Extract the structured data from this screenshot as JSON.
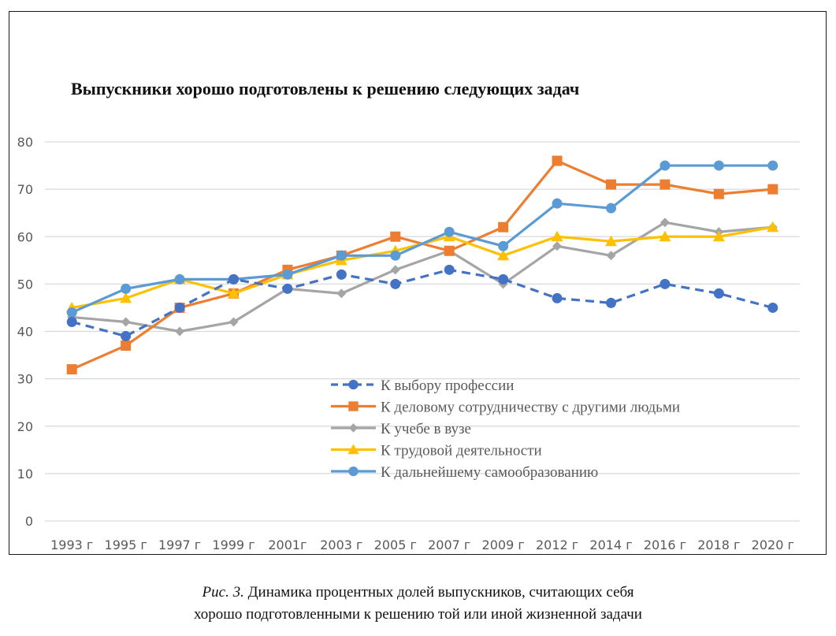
{
  "chart_data": {
    "type": "line",
    "title": "Выпускники хорошо подготовлены к решению следующих задач",
    "xlabel": "",
    "ylabel": "",
    "ylim": [
      0,
      80
    ],
    "yticks": [
      0,
      10,
      20,
      30,
      40,
      50,
      60,
      70,
      80
    ],
    "grid": true,
    "legend_position": "center-bottom (inside plot)",
    "categories": [
      "1993 г",
      "1995 г",
      "1997 г",
      "1999 г",
      "2001г",
      "2003 г",
      "2005 г",
      "2007 г",
      "2009 г",
      "2012 г",
      "2014 г",
      "2016 г",
      "2018 г",
      "2020 г"
    ],
    "series": [
      {
        "name": "К выбору профессии",
        "color": "#4472C4",
        "marker": "circle",
        "dashed": true,
        "values": [
          42,
          39,
          45,
          51,
          49,
          52,
          50,
          53,
          51,
          47,
          46,
          50,
          48,
          45
        ]
      },
      {
        "name": "К деловому сотрудничеству с другими людьми",
        "color": "#ED7D31",
        "marker": "square",
        "dashed": false,
        "values": [
          32,
          37,
          45,
          48,
          53,
          56,
          60,
          57,
          62,
          76,
          71,
          71,
          69,
          70
        ]
      },
      {
        "name": "К учебе в вузе",
        "color": "#A5A5A5",
        "marker": "diamond",
        "dashed": false,
        "values": [
          43,
          42,
          40,
          42,
          49,
          48,
          53,
          57,
          50,
          58,
          56,
          63,
          61,
          62
        ]
      },
      {
        "name": "К трудовой деятельности",
        "color": "#FFC000",
        "marker": "triangle",
        "dashed": false,
        "values": [
          45,
          47,
          51,
          48,
          52,
          55,
          57,
          60,
          56,
          60,
          59,
          60,
          60,
          62
        ]
      },
      {
        "name": "К дальнейшему самообразованию",
        "color": "#5B9BD5",
        "marker": "circle",
        "dashed": false,
        "values": [
          44,
          49,
          51,
          51,
          52,
          56,
          56,
          61,
          58,
          67,
          66,
          75,
          75,
          75
        ]
      }
    ]
  },
  "caption": {
    "lead": "Рис. 3.",
    "text": " Динамика процентных долей выпускников, считающих себя",
    "line2": "хорошо подготовленными к решению той или иной жизненной задачи"
  }
}
